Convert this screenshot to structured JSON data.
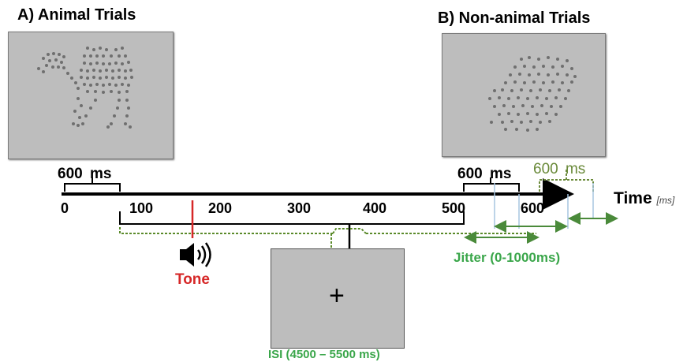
{
  "panel_a": {
    "title": "A) Animal Trials"
  },
  "panel_b": {
    "title": "B) Non-animal Trials"
  },
  "timeline": {
    "ticks": [
      "0",
      "100",
      "200",
      "300",
      "400",
      "500",
      "600"
    ],
    "axis_label": "Time",
    "axis_unit": "[ms]",
    "duration_label_a": "600",
    "duration_unit_a": "ms",
    "duration_label_b": "600",
    "duration_unit_b": "ms",
    "duration_label_c": "600",
    "duration_unit_c": "ms"
  },
  "tone": {
    "label": "Tone",
    "icon": "speaker-icon",
    "color": "#d62828"
  },
  "jitter": {
    "label": "Jitter (0-1000ms)",
    "color": "#3aa64a"
  },
  "isi": {
    "label": "ISI (4500 – 5500 ms)",
    "fixation": "+",
    "color": "#3aa64a"
  },
  "colors": {
    "dotted_green": "#5a8a2a",
    "bracket_green": "#4a8a3a",
    "olive": "#6a8a3a",
    "jitter_light": "#a7c5e0"
  }
}
